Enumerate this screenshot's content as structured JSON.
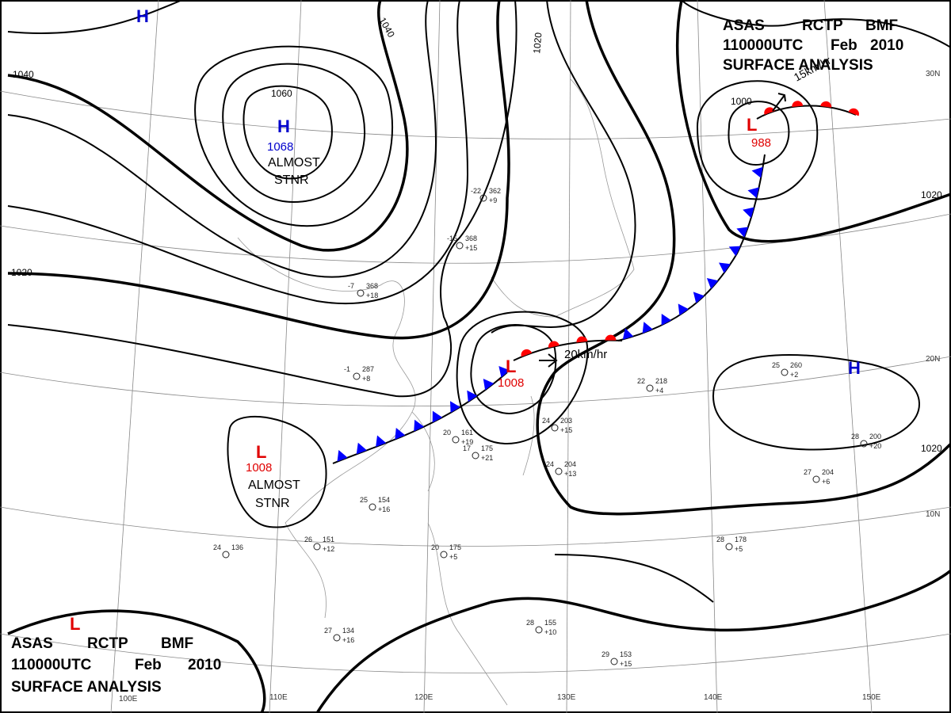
{
  "header": {
    "agency": "ASAS",
    "station": "RCTP",
    "issuer": "BMF",
    "time": "110000UTC",
    "month": "Feb",
    "year": "2010",
    "product": "SURFACE ANALYSIS"
  },
  "systems": [
    {
      "type": "H",
      "pressure": 1068,
      "note": [
        "ALMOST",
        "STNR"
      ]
    },
    {
      "type": "L",
      "pressure": 1008,
      "note": [
        "ALMOST",
        "STNR"
      ]
    },
    {
      "type": "L",
      "pressure": 1008
    },
    {
      "type": "L",
      "pressure": 988
    },
    {
      "type": "H"
    },
    {
      "type": "H"
    },
    {
      "type": "L"
    }
  ],
  "isobar_labels": [
    1040,
    1060,
    1040,
    1020,
    1020,
    1000,
    1020,
    1020
  ],
  "motions": [
    "20km/hr",
    "15km/hr"
  ],
  "latitudes": [
    "30N",
    "20N",
    "10N"
  ],
  "longitudes": [
    "100E",
    "110E",
    "120E",
    "130E",
    "140E",
    "150E"
  ],
  "stations": [
    {
      "temp": -22,
      "pressure": 362,
      "tendency": "+9"
    },
    {
      "temp": -15,
      "pressure": 368,
      "tendency": "+15"
    },
    {
      "temp": -7,
      "pressure": 368,
      "tendency": "+18"
    },
    {
      "temp": -1,
      "pressure": 287,
      "tendency": "+8"
    },
    {
      "temp": 20,
      "pressure": 161,
      "tendency": "+19"
    },
    {
      "temp": 17,
      "pressure": 175,
      "tendency": "+21"
    },
    {
      "temp": 24,
      "pressure": 203,
      "tendency": "+15"
    },
    {
      "temp": 24,
      "pressure": 204,
      "tendency": "+13"
    },
    {
      "temp": 22,
      "pressure": 218,
      "tendency": "+4"
    },
    {
      "temp": 25,
      "pressure": 260,
      "tendency": "+2"
    },
    {
      "temp": 27,
      "pressure": 204,
      "tendency": "+6"
    },
    {
      "temp": 28,
      "pressure": 200,
      "tendency": "+20"
    },
    {
      "temp": 28,
      "pressure": 178,
      "tendency": "+5"
    },
    {
      "temp": 26,
      "pressure": 151,
      "tendency": "+12"
    },
    {
      "temp": 24,
      "pressure": 136
    },
    {
      "temp": 27,
      "pressure": 134,
      "tendency": "+16"
    },
    {
      "temp": 28,
      "pressure": 155,
      "tendency": "+10"
    },
    {
      "temp": 29,
      "pressure": 153,
      "tendency": "+15"
    },
    {
      "temp": 25,
      "pressure": 154,
      "tendency": "+16"
    },
    {
      "temp": 20,
      "pressure": 175,
      "tendency": "+5"
    }
  ]
}
